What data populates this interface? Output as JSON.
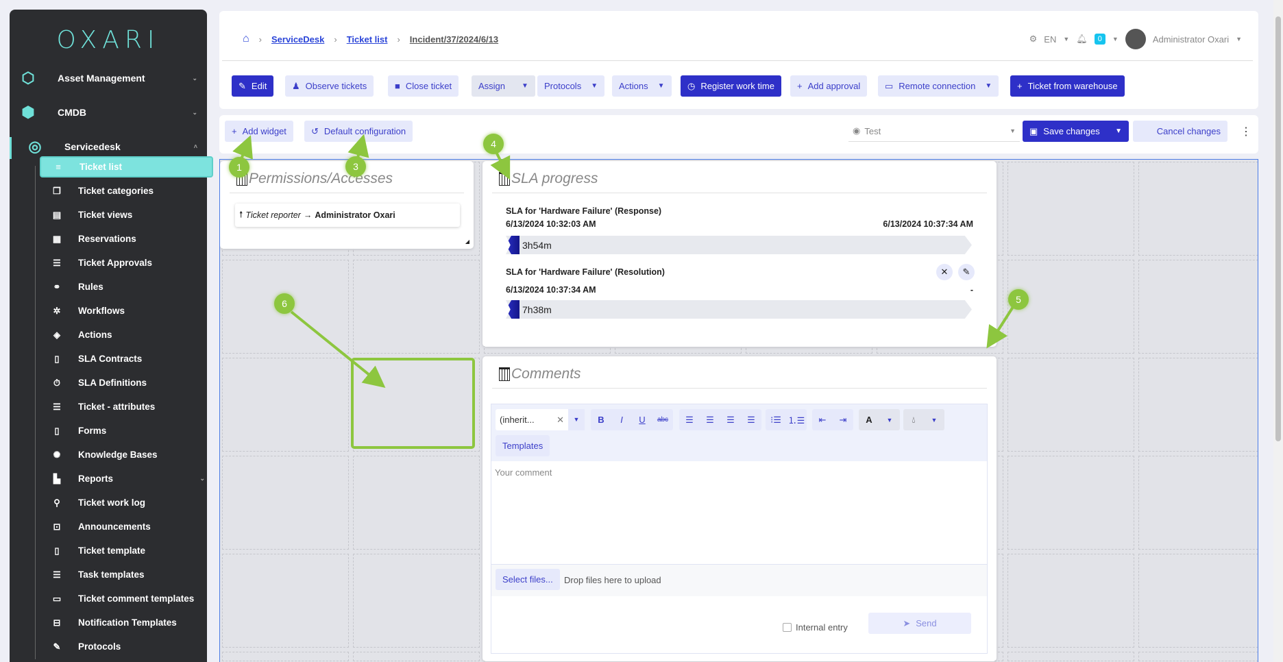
{
  "sidebar": {
    "logo": "OXARI",
    "modules": [
      {
        "label": "Asset Management",
        "icon": "hexagons-icon"
      },
      {
        "label": "CMDB",
        "icon": "cmdb-icon"
      },
      {
        "label": "Servicedesk",
        "icon": "headset-icon"
      }
    ],
    "items": [
      {
        "label": "Ticket list",
        "icon": "≡",
        "active": true
      },
      {
        "label": "Ticket categories",
        "icon": "❐"
      },
      {
        "label": "Ticket views",
        "icon": "▤"
      },
      {
        "label": "Reservations",
        "icon": "▦"
      },
      {
        "label": "Ticket Approvals",
        "icon": "☰"
      },
      {
        "label": "Rules",
        "icon": "⚭"
      },
      {
        "label": "Workflows",
        "icon": "✲"
      },
      {
        "label": "Actions",
        "icon": "◈"
      },
      {
        "label": "SLA Contracts",
        "icon": "▯"
      },
      {
        "label": "SLA Definitions",
        "icon": "⏱"
      },
      {
        "label": "Ticket - attributes",
        "icon": "☰"
      },
      {
        "label": "Forms",
        "icon": "▯"
      },
      {
        "label": "Knowledge Bases",
        "icon": "✺"
      },
      {
        "label": "Reports",
        "icon": "▙",
        "chevron": true
      },
      {
        "label": "Ticket work log",
        "icon": "⚲"
      },
      {
        "label": "Announcements",
        "icon": "⊡"
      },
      {
        "label": "Ticket template",
        "icon": "▯"
      },
      {
        "label": "Task templates",
        "icon": "☰"
      },
      {
        "label": "Ticket comment templates",
        "icon": "▭"
      },
      {
        "label": "Notification Templates",
        "icon": "⊟"
      },
      {
        "label": "Protocols",
        "icon": "✎"
      }
    ]
  },
  "breadcrumb": [
    "ServiceDesk",
    "Ticket list",
    "Incident/37/2024/6/13"
  ],
  "header": {
    "language": "EN",
    "notifications": "0",
    "user": "Administrator Oxari"
  },
  "toolbar": [
    "Edit",
    "Observe tickets",
    "Close ticket",
    "Assign",
    "Protocols",
    "Actions",
    "Register work time",
    "Add approval",
    "Remote connection",
    "Ticket from warehouse"
  ],
  "config": {
    "add_widget": "Add widget",
    "default_config": "Default configuration",
    "view_select": "Test",
    "save": "Save changes",
    "cancel": "Cancel changes"
  },
  "permissions": {
    "title": "Permissions/Accesses",
    "role": "Ticket reporter",
    "arrow": "→",
    "user": "Administrator Oxari"
  },
  "sla": {
    "title": "SLA progress",
    "items": [
      {
        "name": "SLA for 'Hardware Failure' (Response)",
        "start": "6/13/2024 10:32:03 AM",
        "end": "6/13/2024 10:37:34 AM",
        "remaining": "3h54m",
        "progress": 0.02
      },
      {
        "name": "SLA for 'Hardware Failure' (Resolution)",
        "start": "6/13/2024 10:37:34 AM",
        "end": "-",
        "remaining": "7h38m",
        "progress": 0.05
      }
    ]
  },
  "comments": {
    "title": "Comments",
    "font": "(inherit...",
    "templates": "Templates",
    "placeholder": "Your comment",
    "select_files": "Select files...",
    "drop_hint": "Drop files here to upload",
    "internal": "Internal entry",
    "send": "Send"
  },
  "annotations": [
    "1",
    "3",
    "4",
    "5",
    "6"
  ],
  "colors": {
    "accent": "#2e30c8",
    "teal": "#7de3de",
    "annotation": "#8dc63f"
  }
}
